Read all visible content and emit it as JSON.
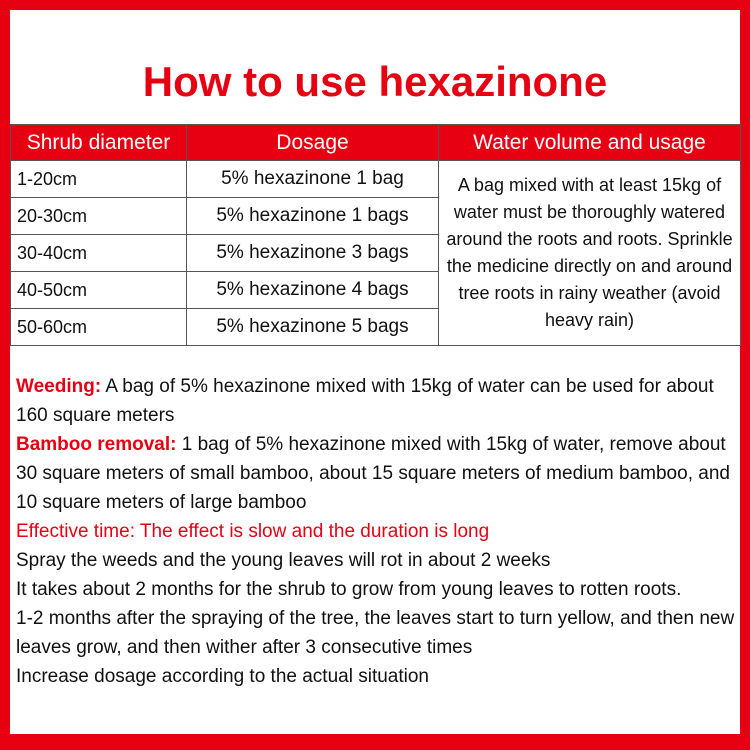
{
  "title": "How to use hexazinone",
  "table": {
    "headers": [
      "Shrub diameter",
      "Dosage",
      "Water volume and usage"
    ],
    "rows": [
      {
        "diameter": "1-20cm",
        "dosage": "5% hexazinone 1 bag"
      },
      {
        "diameter": "20-30cm",
        "dosage": "5% hexazinone 1 bags"
      },
      {
        "diameter": "30-40cm",
        "dosage": "5% hexazinone 3 bags"
      },
      {
        "diameter": "40-50cm",
        "dosage": "5% hexazinone 4 bags"
      },
      {
        "diameter": "50-60cm",
        "dosage": "5% hexazinone 5 bags"
      }
    ],
    "usage": "A bag mixed with at least 15kg of water must be thoroughly watered around the roots and roots. Sprinkle the medicine directly on and around tree roots in rainy weather (avoid heavy rain)"
  },
  "notes": {
    "weeding_label": "Weeding:",
    "weeding_text": " A bag of 5% hexazinone mixed with 15kg of water can be used for about 160 square meters",
    "bamboo_label": "Bamboo removal:",
    "bamboo_text": " 1 bag of 5% hexazinone mixed with 15kg of water, remove about 30 square meters of small bamboo, about 15 square meters of medium bamboo, and 10 square meters of large bamboo",
    "effective": "Effective time: The effect is slow and the duration is long",
    "lines": [
      "Spray the weeds and the young leaves will rot in about 2 weeks",
      "It takes about 2 months for the shrub to grow from young leaves to rotten roots.",
      "1-2 months after the spraying of the tree, the leaves start to turn yellow, and then new leaves grow, and then wither after 3 consecutive times",
      "Increase dosage according to the actual situation"
    ]
  },
  "colors": {
    "accent": "#e60012"
  }
}
